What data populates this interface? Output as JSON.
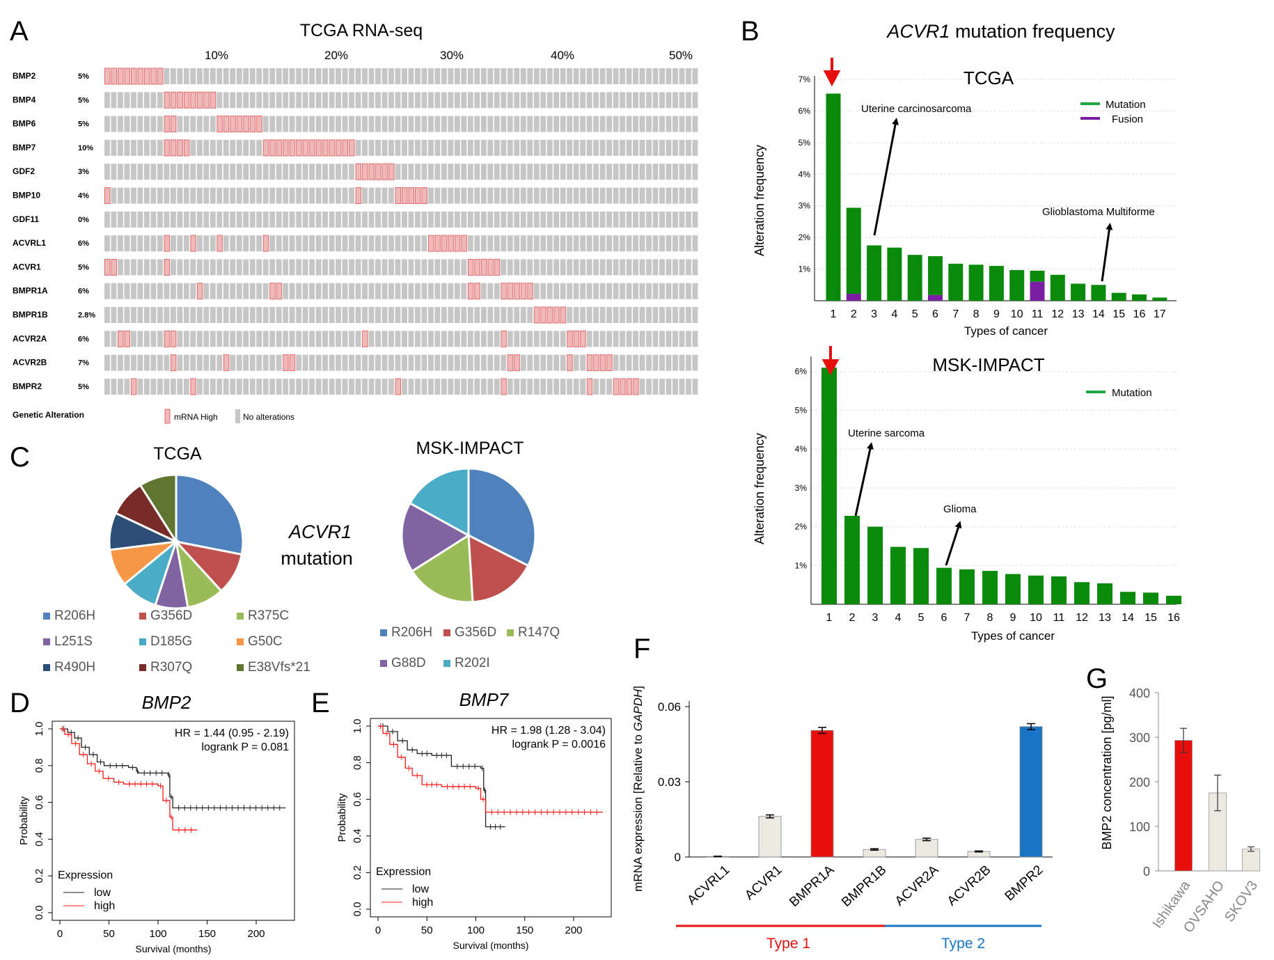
{
  "panel_letters": {
    "a": "A",
    "b": "B",
    "c": "C",
    "d": "D",
    "e": "E",
    "f": "F",
    "g": "G"
  },
  "colors": {
    "alt": "#f0b9b9",
    "alt_border": "#e06a6a",
    "none": "#c6c6c6",
    "green": "#0a8a0a",
    "purple": "#7b1fa2",
    "red_arrow": "#e8100c",
    "type1": "#e8100c",
    "type2": "#1874c4",
    "beige": "#ece9e0"
  },
  "chart_data": [
    {
      "panel": "A",
      "type": "heatmap",
      "title": "TCGA RNA-seq",
      "percent_ticks": [
        "10%",
        "20%",
        "30%",
        "40%",
        "50%"
      ],
      "samples": 90,
      "genes": [
        {
          "name": "BMP2",
          "pct": "5%",
          "alt": [
            [
              0,
              8
            ]
          ]
        },
        {
          "name": "BMP4",
          "pct": "5%",
          "alt": [
            [
              9,
              16
            ]
          ]
        },
        {
          "name": "BMP6",
          "pct": "5%",
          "alt": [
            [
              9,
              10
            ],
            [
              17,
              23
            ]
          ]
        },
        {
          "name": "BMP7",
          "pct": "10%",
          "alt": [
            [
              9,
              12
            ],
            [
              24,
              37
            ]
          ]
        },
        {
          "name": "GDF2",
          "pct": "3%",
          "alt": [
            [
              38,
              43
            ]
          ]
        },
        {
          "name": "BMP10",
          "pct": "4%",
          "alt": [
            [
              0,
              0
            ],
            [
              38,
              38
            ],
            [
              44,
              48
            ]
          ]
        },
        {
          "name": "GDF11",
          "pct": "0%",
          "alt": []
        },
        {
          "name": "ACVRL1",
          "pct": "6%",
          "alt": [
            [
              9,
              9
            ],
            [
              13,
              13
            ],
            [
              17,
              17
            ],
            [
              24,
              24
            ],
            [
              49,
              54
            ]
          ]
        },
        {
          "name": "ACVR1",
          "pct": "5%",
          "alt": [
            [
              0,
              1
            ],
            [
              9,
              9
            ],
            [
              55,
              59
            ]
          ]
        },
        {
          "name": "BMPR1A",
          "pct": "6%",
          "alt": [
            [
              14,
              14
            ],
            [
              25,
              26
            ],
            [
              55,
              56
            ],
            [
              60,
              64
            ]
          ]
        },
        {
          "name": "BMPR1B",
          "pct": "2.8%",
          "alt": [
            [
              65,
              69
            ]
          ]
        },
        {
          "name": "ACVR2A",
          "pct": "6%",
          "alt": [
            [
              2,
              3
            ],
            [
              9,
              10
            ],
            [
              39,
              39
            ],
            [
              60,
              60
            ],
            [
              70,
              72
            ]
          ]
        },
        {
          "name": "ACVR2B",
          "pct": "7%",
          "alt": [
            [
              10,
              10
            ],
            [
              18,
              18
            ],
            [
              27,
              28
            ],
            [
              61,
              62
            ],
            [
              70,
              70
            ],
            [
              73,
              76
            ]
          ]
        },
        {
          "name": "BMPR2",
          "pct": "5%",
          "alt": [
            [
              4,
              4
            ],
            [
              13,
              13
            ],
            [
              44,
              44
            ],
            [
              60,
              60
            ],
            [
              73,
              73
            ],
            [
              77,
              80
            ]
          ]
        }
      ],
      "legend_label": "Genetic Alteration",
      "legend_items": [
        "mRNA High",
        "No alterations"
      ]
    },
    {
      "panel": "B1",
      "type": "bar",
      "suptitle_gene": "ACVR1",
      "suptitle_rest": " mutation frequency",
      "title": "TCGA",
      "xlabel": "Types of cancer",
      "ylabel": "Alteration frequency",
      "categories": [
        "1",
        "2",
        "3",
        "4",
        "5",
        "6",
        "7",
        "8",
        "9",
        "10",
        "11",
        "12",
        "13",
        "14",
        "15",
        "16",
        "17"
      ],
      "series": [
        {
          "name": "Mutation",
          "values": [
            6.55,
            2.72,
            1.75,
            1.68,
            1.45,
            1.23,
            1.17,
            1.14,
            1.1,
            0.97,
            0.35,
            0.82,
            0.54,
            0.5,
            0.25,
            0.2,
            0.1
          ]
        },
        {
          "name": "Fusion",
          "values": [
            0,
            0.22,
            0,
            0,
            0,
            0.18,
            0,
            0,
            0,
            0,
            0.6,
            0,
            0,
            0,
            0,
            0,
            0
          ]
        }
      ],
      "yticks": [
        "1%",
        "2%",
        "3%",
        "4%",
        "5%",
        "6%",
        "7%"
      ],
      "ylim": [
        0,
        7
      ],
      "annotations": [
        "Uterine carcinosarcoma",
        "Glioblastoma Multiforme"
      ]
    },
    {
      "panel": "B2",
      "type": "bar",
      "title": "MSK-IMPACT",
      "xlabel": "Types of cancer",
      "ylabel": "Alteration frequency",
      "categories": [
        "1",
        "2",
        "3",
        "4",
        "5",
        "6",
        "7",
        "8",
        "9",
        "10",
        "11",
        "12",
        "13",
        "14",
        "15",
        "16"
      ],
      "series": [
        {
          "name": "Mutation",
          "values": [
            6.1,
            2.28,
            2.0,
            1.48,
            1.45,
            0.94,
            0.9,
            0.86,
            0.78,
            0.74,
            0.72,
            0.57,
            0.54,
            0.32,
            0.3,
            0.22
          ]
        }
      ],
      "yticks": [
        "1%",
        "2%",
        "3%",
        "4%",
        "5%",
        "6%"
      ],
      "ylim": [
        0,
        6.3
      ],
      "annotations": [
        "Uterine sarcoma",
        "Glioma"
      ]
    },
    {
      "panel": "C1",
      "type": "pie",
      "title": "TCGA",
      "labels": [
        "R206H",
        "G356D",
        "R375C",
        "L251S",
        "D185G",
        "G50C",
        "R490H",
        "R307Q",
        "E38Vfs*21"
      ],
      "values": [
        25,
        9,
        8,
        7,
        8,
        8,
        8,
        8,
        8
      ],
      "colors": [
        "#4f81bd",
        "#c0504d",
        "#9bbb59",
        "#8064a2",
        "#4bacc6",
        "#f79646",
        "#2c4d75",
        "#772c2a",
        "#5f7530"
      ]
    },
    {
      "panel": "C2",
      "type": "pie",
      "title": "MSK-IMPACT",
      "labels": [
        "R206H",
        "G356D",
        "R147Q",
        "G88D",
        "R202I"
      ],
      "values": [
        32.5,
        16.5,
        17,
        17,
        17
      ],
      "colors": [
        "#4f81bd",
        "#c0504d",
        "#9bbb59",
        "#8064a2",
        "#4bacc6"
      ]
    },
    {
      "panel": "D",
      "type": "line",
      "title": "BMP2",
      "hr": "HR = 1.44 (0.95 - 2.19)",
      "logrank": "logrank P = 0.081",
      "xlabel": "Survival (months)",
      "ylabel": "Probability",
      "xticks": [
        "0",
        "50",
        "100",
        "150",
        "200"
      ],
      "yticks": [
        "0.0",
        "0.2",
        "0.4",
        "0.6",
        "0.8",
        "1.0"
      ],
      "xlim": [
        0,
        230
      ],
      "ylim": [
        0,
        1
      ],
      "legend_title": "Expression",
      "legend_items": [
        "low",
        "high"
      ],
      "low": [
        [
          0,
          1
        ],
        [
          8,
          0.98
        ],
        [
          15,
          0.95
        ],
        [
          22,
          0.9
        ],
        [
          30,
          0.86
        ],
        [
          38,
          0.82
        ],
        [
          45,
          0.8
        ],
        [
          70,
          0.79
        ],
        [
          78,
          0.77
        ],
        [
          80,
          0.76
        ],
        [
          110,
          0.75
        ],
        [
          112,
          0.63
        ],
        [
          115,
          0.57
        ],
        [
          230,
          0.57
        ]
      ],
      "high": [
        [
          0,
          1
        ],
        [
          5,
          0.97
        ],
        [
          12,
          0.92
        ],
        [
          20,
          0.86
        ],
        [
          28,
          0.81
        ],
        [
          36,
          0.77
        ],
        [
          44,
          0.73
        ],
        [
          55,
          0.71
        ],
        [
          65,
          0.7
        ],
        [
          100,
          0.69
        ],
        [
          105,
          0.61
        ],
        [
          112,
          0.52
        ],
        [
          115,
          0.45
        ],
        [
          140,
          0.45
        ]
      ]
    },
    {
      "panel": "E",
      "type": "line",
      "title": "BMP7",
      "hr": "HR = 1.98 (1.28 - 3.04)",
      "logrank": "logrank P = 0.0016",
      "xlabel": "Survival (months)",
      "ylabel": "Probability",
      "xticks": [
        "0",
        "50",
        "100",
        "150",
        "200"
      ],
      "yticks": [
        "0.0",
        "0.2",
        "0.4",
        "0.6",
        "0.8",
        "1.0"
      ],
      "xlim": [
        0,
        230
      ],
      "ylim": [
        0,
        1
      ],
      "legend_title": "Expression",
      "legend_items": [
        "low",
        "high"
      ],
      "low": [
        [
          0,
          1
        ],
        [
          10,
          0.97
        ],
        [
          20,
          0.92
        ],
        [
          30,
          0.87
        ],
        [
          40,
          0.85
        ],
        [
          55,
          0.84
        ],
        [
          75,
          0.78
        ],
        [
          105,
          0.77
        ],
        [
          108,
          0.65
        ],
        [
          110,
          0.45
        ],
        [
          130,
          0.45
        ]
      ],
      "high": [
        [
          0,
          1
        ],
        [
          5,
          0.96
        ],
        [
          12,
          0.9
        ],
        [
          20,
          0.83
        ],
        [
          28,
          0.77
        ],
        [
          35,
          0.73
        ],
        [
          45,
          0.68
        ],
        [
          65,
          0.67
        ],
        [
          100,
          0.66
        ],
        [
          105,
          0.6
        ],
        [
          110,
          0.53
        ],
        [
          230,
          0.53
        ]
      ]
    },
    {
      "panel": "F",
      "type": "bar",
      "ylabel_prefix": "mRNA expression [Relative to ",
      "ylabel_italic": "GAPDH",
      "ylabel_suffix": "]",
      "categories": [
        "ACVRL1",
        "ACVR1",
        "BMPR1A",
        "BMPR1B",
        "ACVR2A",
        "ACVR2B",
        "BMPR2"
      ],
      "values": [
        0.0002,
        0.0162,
        0.0505,
        0.003,
        0.007,
        0.0022,
        0.052
      ],
      "errors": [
        0.0001,
        0.0006,
        0.0012,
        0.0003,
        0.0005,
        0.0002,
        0.0012
      ],
      "bar_colors": [
        "beige",
        "beige",
        "type1",
        "beige",
        "beige",
        "beige",
        "type2"
      ],
      "yticks": [
        "0",
        "0.03",
        "0.06"
      ],
      "ylim": [
        0,
        0.06
      ],
      "groups": [
        {
          "name": "Type 1",
          "from": 0,
          "to": 3,
          "color": "type1"
        },
        {
          "name": "Type 2",
          "from": 4,
          "to": 6,
          "color": "type2"
        }
      ]
    },
    {
      "panel": "G",
      "type": "bar",
      "ylabel": "BMP2 concentration [pg/ml]",
      "categories": [
        "Ishikawa",
        "OVSAHO",
        "SKOV3"
      ],
      "values": [
        293,
        175,
        49
      ],
      "errors": [
        27,
        40,
        5
      ],
      "bar_colors": [
        "type1",
        "beige",
        "beige"
      ],
      "yticks": [
        "0",
        "100",
        "200",
        "300",
        "400"
      ],
      "ylim": [
        0,
        400
      ]
    }
  ]
}
